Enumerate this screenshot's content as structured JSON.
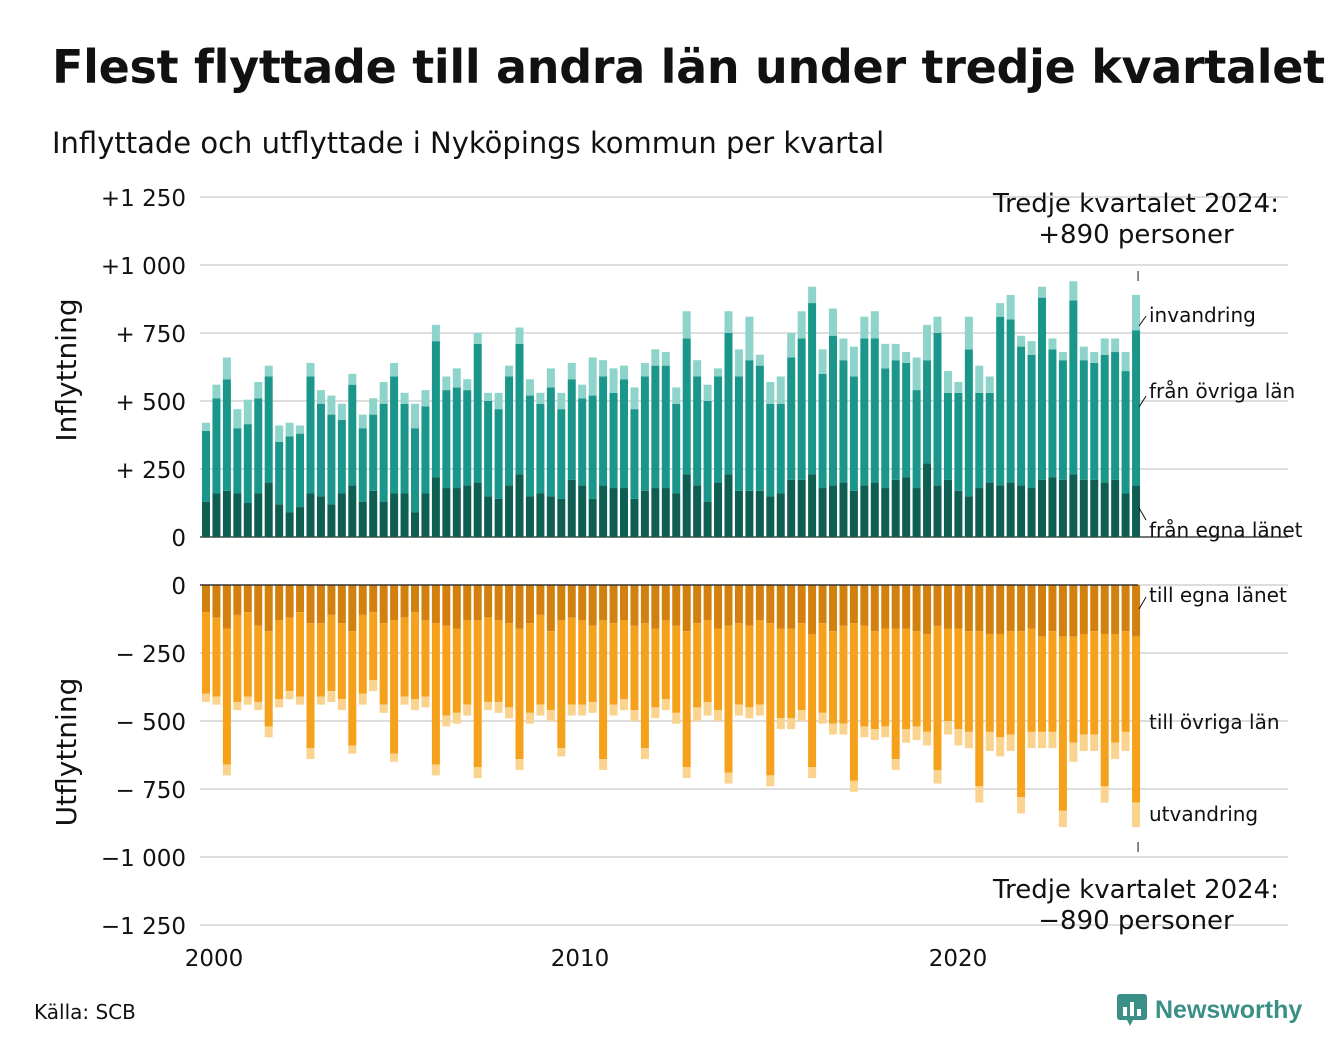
{
  "title": "Flest flyttade till andra län under tredje kvartalet",
  "subtitle": "Inflyttade och utflyttade i Nyköpings kommun per kvartal",
  "source": "Källa: SCB",
  "brand": "Newsworthy",
  "colors": {
    "in_own": "#0f5e52",
    "in_other": "#1a978a",
    "in_imm": "#8ed4cb",
    "out_own": "#d2810f",
    "out_other": "#f6a11c",
    "out_emig": "#fad48f",
    "grid": "#dddddd",
    "brand": "#3a8f86"
  },
  "chart_data": {
    "type": "bar",
    "stacked": true,
    "x_start": "2000 Q1",
    "x_ticks": [
      "2000",
      "2010",
      "2020"
    ],
    "panels": [
      {
        "name": "Inflyttning",
        "ylim": [
          0,
          1250
        ],
        "y_ticks": [
          "+1 250",
          "+1 000",
          "+  750",
          "+  500",
          "+  250",
          "0"
        ],
        "series": [
          {
            "name": "från egna länet",
            "label": "från egna länet",
            "values": [
              130,
              160,
              170,
              160,
              125,
              160,
              200,
              120,
              90,
              110,
              160,
              150,
              120,
              160,
              190,
              130,
              170,
              130,
              160,
              160,
              90,
              160,
              220,
              180,
              180,
              190,
              200,
              150,
              140,
              190,
              230,
              150,
              160,
              150,
              140,
              210,
              190,
              140,
              190,
              180,
              180,
              140,
              170,
              180,
              180,
              160,
              230,
              190,
              130,
              200,
              230,
              170,
              170,
              170,
              150,
              160,
              210,
              210,
              230,
              180,
              190,
              200,
              170,
              190,
              200,
              180,
              210,
              220,
              180,
              270,
              190,
              210,
              170,
              150,
              180,
              200,
              190,
              200,
              190,
              180,
              210,
              220,
              210,
              230,
              210,
              210,
              200,
              210,
              160,
              190
            ]
          },
          {
            "name": "från övriga län",
            "label": "från övriga län",
            "values": [
              260,
              350,
              410,
              240,
              290,
              350,
              390,
              230,
              280,
              270,
              430,
              340,
              330,
              270,
              370,
              270,
              280,
              360,
              430,
              330,
              310,
              320,
              500,
              360,
              370,
              350,
              510,
              350,
              330,
              400,
              480,
              370,
              330,
              400,
              330,
              370,
              320,
              380,
              400,
              350,
              400,
              330,
              420,
              450,
              450,
              330,
              500,
              400,
              370,
              390,
              520,
              420,
              480,
              460,
              340,
              330,
              450,
              520,
              630,
              420,
              550,
              450,
              420,
              540,
              530,
              440,
              440,
              420,
              360,
              380,
              560,
              320,
              360,
              540,
              350,
              330,
              620,
              600,
              510,
              490,
              670,
              470,
              440,
              640,
              440,
              430,
              470,
              470,
              450,
              570
            ]
          },
          {
            "name": "invandring",
            "label": "invandring",
            "values": [
              30,
              50,
              80,
              70,
              90,
              60,
              40,
              60,
              50,
              30,
              50,
              50,
              70,
              60,
              40,
              50,
              60,
              80,
              50,
              40,
              90,
              60,
              60,
              50,
              70,
              40,
              40,
              30,
              60,
              40,
              60,
              60,
              40,
              70,
              60,
              60,
              50,
              140,
              60,
              90,
              50,
              80,
              50,
              60,
              50,
              60,
              100,
              60,
              60,
              30,
              80,
              100,
              160,
              40,
              80,
              100,
              90,
              100,
              60,
              90,
              100,
              80,
              110,
              80,
              100,
              90,
              60,
              40,
              120,
              130,
              60,
              80,
              40,
              120,
              100,
              60,
              50,
              90,
              40,
              50,
              40,
              40,
              30,
              70,
              50,
              40,
              60,
              50,
              70,
              130
            ]
          }
        ]
      },
      {
        "name": "Utflyttning",
        "ylim": [
          -1250,
          0
        ],
        "y_ticks": [
          "0",
          "− 250",
          "− 500",
          "− 750",
          "−1 000",
          "−1 250"
        ],
        "series": [
          {
            "name": "till egna länet",
            "label": "till egna länet",
            "values": [
              -100,
              -120,
              -160,
              -110,
              -100,
              -150,
              -170,
              -130,
              -120,
              -100,
              -140,
              -140,
              -110,
              -140,
              -170,
              -110,
              -100,
              -140,
              -130,
              -120,
              -100,
              -130,
              -140,
              -150,
              -160,
              -130,
              -130,
              -120,
              -130,
              -140,
              -160,
              -140,
              -110,
              -170,
              -130,
              -120,
              -130,
              -150,
              -130,
              -140,
              -130,
              -150,
              -140,
              -160,
              -130,
              -150,
              -170,
              -140,
              -130,
              -160,
              -150,
              -140,
              -150,
              -130,
              -140,
              -160,
              -160,
              -140,
              -180,
              -140,
              -170,
              -150,
              -140,
              -150,
              -170,
              -160,
              -160,
              -160,
              -170,
              -180,
              -150,
              -160,
              -160,
              -170,
              -170,
              -180,
              -180,
              -170,
              -170,
              -160,
              -190,
              -170,
              -190,
              -190,
              -180,
              -170,
              -180,
              -180,
              -170,
              -190
            ]
          },
          {
            "name": "till övriga län",
            "label": "till övriga län",
            "values": [
              -300,
              -290,
              -500,
              -320,
              -310,
              -280,
              -350,
              -290,
              -270,
              -310,
              -460,
              -270,
              -280,
              -280,
              -420,
              -290,
              -250,
              -300,
              -490,
              -290,
              -320,
              -280,
              -520,
              -330,
              -310,
              -310,
              -540,
              -310,
              -300,
              -310,
              -480,
              -330,
              -330,
              -290,
              -470,
              -320,
              -310,
              -280,
              -510,
              -300,
              -290,
              -310,
              -460,
              -290,
              -290,
              -320,
              -500,
              -310,
              -300,
              -300,
              -540,
              -300,
              -300,
              -310,
              -560,
              -330,
              -330,
              -320,
              -490,
              -330,
              -340,
              -360,
              -580,
              -370,
              -360,
              -360,
              -480,
              -370,
              -350,
              -360,
              -530,
              -340,
              -370,
              -370,
              -570,
              -360,
              -380,
              -380,
              -610,
              -380,
              -350,
              -370,
              -640,
              -390,
              -370,
              -380,
              -560,
              -400,
              -370,
              -610
            ]
          },
          {
            "name": "utvandring",
            "label": "utvandring",
            "values": [
              -30,
              -30,
              -40,
              -30,
              -30,
              -30,
              -40,
              -30,
              -30,
              -30,
              -40,
              -30,
              -40,
              -40,
              -30,
              -40,
              -40,
              -30,
              -30,
              -30,
              -40,
              -40,
              -40,
              -40,
              -40,
              -40,
              -40,
              -30,
              -40,
              -40,
              -40,
              -40,
              -40,
              -40,
              -30,
              -40,
              -40,
              -40,
              -40,
              -40,
              -40,
              -40,
              -40,
              -40,
              -40,
              -40,
              -40,
              -50,
              -50,
              -40,
              -40,
              -40,
              -40,
              -40,
              -40,
              -40,
              -40,
              -40,
              -40,
              -40,
              -40,
              -40,
              -40,
              -40,
              -40,
              -40,
              -40,
              -50,
              -50,
              -50,
              -50,
              -50,
              -60,
              -60,
              -60,
              -70,
              -70,
              -60,
              -60,
              -60,
              -60,
              -60,
              -60,
              -70,
              -60,
              -60,
              -60,
              -60,
              -70,
              -90
            ]
          }
        ]
      }
    ],
    "annotations": [
      {
        "text": "Tredje kvartalet 2024:",
        "line2": "+890 personer"
      },
      {
        "text": "Tredje kvartalet 2024:",
        "line2": "−890 personer"
      }
    ],
    "ylabels": [
      "Inflyttning",
      "Utflyttning"
    ]
  }
}
